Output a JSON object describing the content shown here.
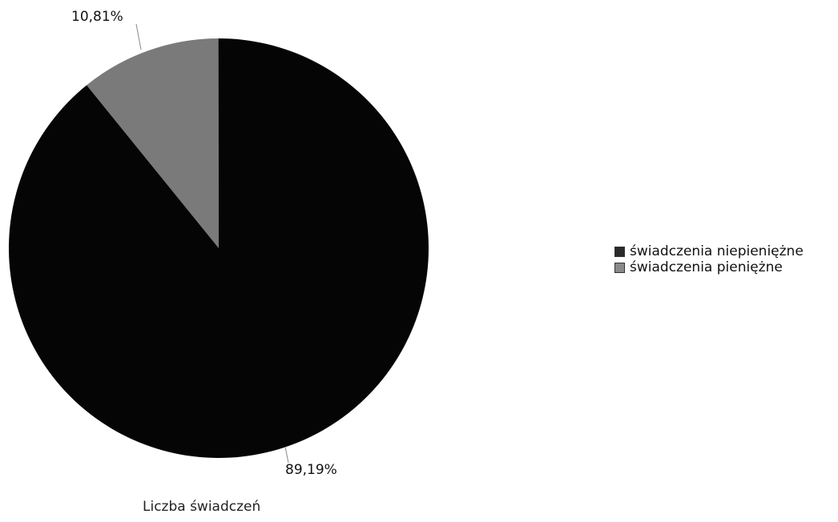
{
  "chart_data": {
    "type": "pie",
    "title": "Liczba świadczeń",
    "slices": [
      {
        "label": "świadczenia pieniężne",
        "value": 10.81,
        "display": "10,81%",
        "color": "#7a7a7a"
      },
      {
        "label": "świadczenia niepieniężne",
        "value": 89.19,
        "display": "89,19%",
        "color": "#050505"
      }
    ],
    "legend": {
      "placement": "right",
      "entries": [
        {
          "label": "świadczenia niepieniężne",
          "color": "#2a2a2a"
        },
        {
          "label": "świadczenia pieniężne",
          "color": "#8a8a8a"
        }
      ]
    }
  }
}
